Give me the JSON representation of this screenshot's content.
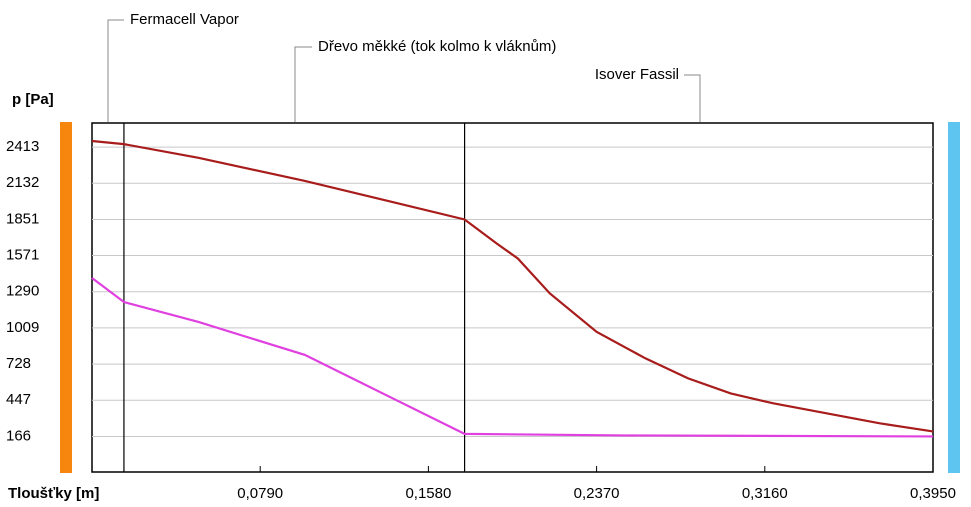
{
  "chart_data": {
    "type": "line",
    "ylabel": "p [Pa]",
    "xlabel": "Tloušťky [m]",
    "layers": [
      {
        "name": "Fermacell Vapor",
        "x_end": 0.015
      },
      {
        "name": "Dřevo měkké (tok kolmo k vláknům)",
        "x_end": 0.175
      },
      {
        "name": "Isover Fassil",
        "x_end": 0.395
      }
    ],
    "xlim": [
      0,
      0.395
    ],
    "xticks": [
      {
        "value": 0.079,
        "label": "0,0790"
      },
      {
        "value": 0.158,
        "label": "0,1580"
      },
      {
        "value": 0.237,
        "label": "0,2370"
      },
      {
        "value": 0.316,
        "label": "0,3160"
      },
      {
        "value": 0.395,
        "label": "0,3950"
      }
    ],
    "ylim": [
      -110,
      2600
    ],
    "yticks": [
      166,
      447,
      728,
      1009,
      1290,
      1571,
      1851,
      2132,
      2413
    ],
    "grid": true,
    "series": [
      {
        "color": "#a81c1c",
        "x": [
          0,
          0.015,
          0.05,
          0.1,
          0.175,
          0.19,
          0.2,
          0.215,
          0.237,
          0.26,
          0.28,
          0.3,
          0.32,
          0.35,
          0.37,
          0.395
        ],
        "values": [
          2460,
          2436,
          2330,
          2150,
          1851,
          1665,
          1548,
          1277,
          978,
          772,
          617,
          500,
          423,
          330,
          268,
          205
        ]
      },
      {
        "color": "#e040e0",
        "x": [
          0,
          0.015,
          0.05,
          0.1,
          0.175,
          0.25,
          0.395
        ],
        "values": [
          1396,
          1210,
          1055,
          799,
          186,
          174,
          166
        ]
      }
    ]
  }
}
